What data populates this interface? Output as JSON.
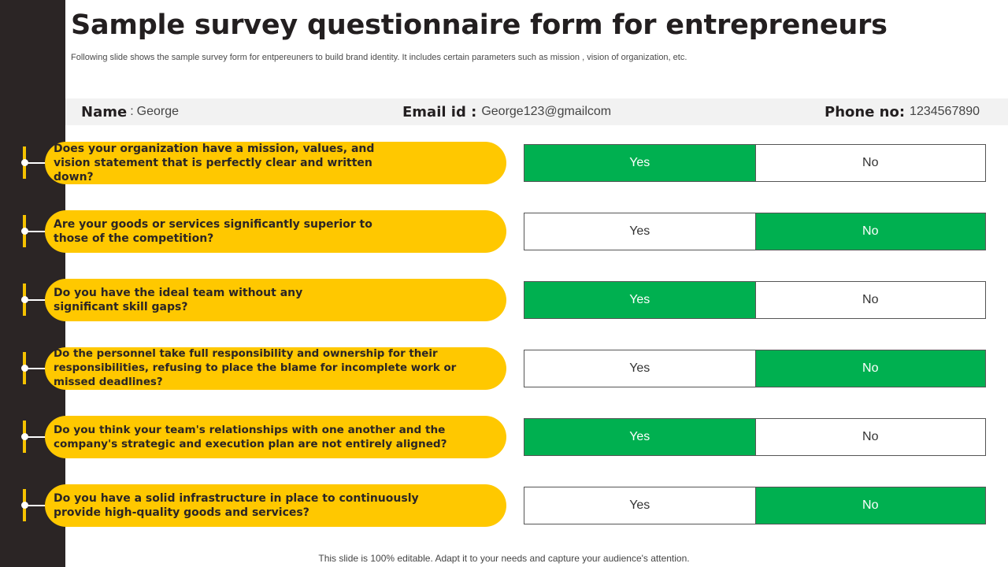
{
  "title": "Sample survey questionnaire form for entrepreneurs",
  "subtitle": "Following slide shows the sample survey form for  entpereuners to build brand identity. It includes certain parameters such as mission , vision of organization, etc.",
  "respondent": {
    "name_label": "Name",
    "name_sep": ":",
    "name_value": "George",
    "email_label": "Email id :",
    "email_value": "George123@gmailcom",
    "phone_label": "Phone no:",
    "phone_value": "1234567890"
  },
  "options": {
    "yes": "Yes",
    "no": "No"
  },
  "colors": {
    "accent_yellow": "#ffc800",
    "selected_green": "#00b050",
    "sidebar_dark": "#2b2525"
  },
  "questions": [
    {
      "text": "Does your organization have a mission, values, and vision statement that is perfectly clear and written down?",
      "answer": "Yes"
    },
    {
      "text": "Are your goods or services significantly superior to those of the competition?",
      "answer": "No"
    },
    {
      "text": "Do you have the ideal team without any significant skill gaps?",
      "answer": "Yes"
    },
    {
      "text": "Do the personnel take full responsibility and ownership for their responsibilities, refusing to place the blame for incomplete work or missed deadlines?",
      "answer": "No"
    },
    {
      "text": "Do you think your team's relationships with one another and the company's strategic and execution plan are not entirely aligned?",
      "answer": "Yes"
    },
    {
      "text": "Do you have a solid infrastructure in place to continuously provide high-quality goods and services?",
      "answer": "No"
    }
  ],
  "footer": "This slide is 100% editable. Adapt it to your needs and capture your audience's attention."
}
